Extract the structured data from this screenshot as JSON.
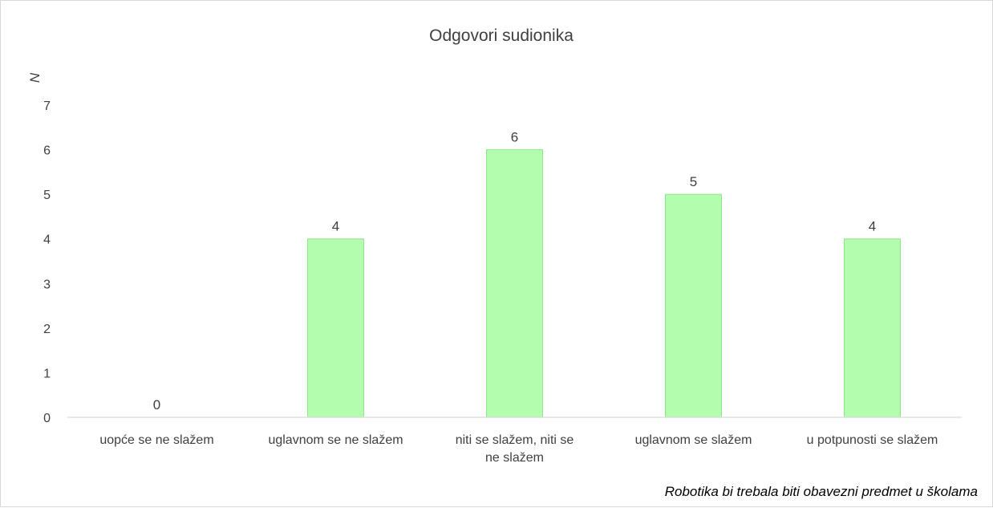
{
  "chart_data": {
    "type": "bar",
    "title": "Odgovori sudionika",
    "xlabel": "Robotika bi trebala biti obavezni predmet u školama",
    "ylabel": "N",
    "categories": [
      "uopće se ne slažem",
      "uglavnom se ne slažem",
      "niti se slažem, niti se ne slažem",
      "uglavnom se slažem",
      "u potpunosti se slažem"
    ],
    "values": [
      0,
      4,
      6,
      5,
      4
    ],
    "ylim": [
      0,
      7
    ],
    "yticks": [
      0,
      1,
      2,
      3,
      4,
      5,
      6,
      7
    ],
    "bar_color": "#b3fdae",
    "bar_edge_color": "#8fe58a",
    "grid": false,
    "legend": "none"
  }
}
